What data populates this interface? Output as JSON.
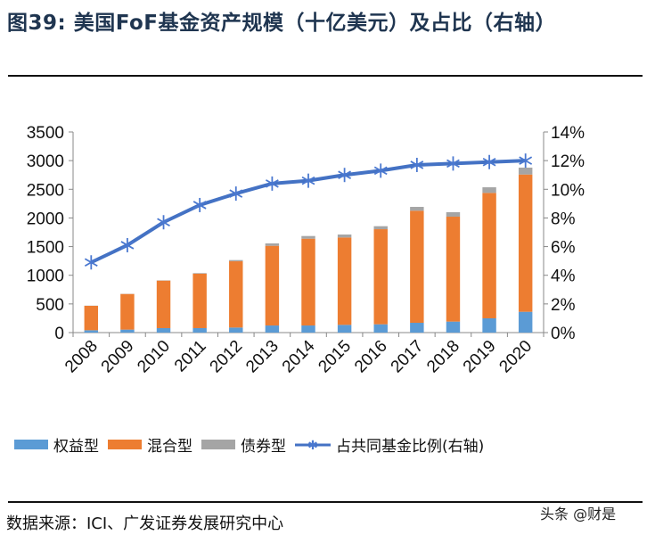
{
  "title": "图39:  美国FoF基金资产规模（十亿美元）及占比（右轴）",
  "source": "数据来源：ICI、广发证券发展研究中心",
  "watermark": "头条 @财是",
  "chart_data": {
    "type": "bar+line",
    "stacked": true,
    "title": "美国FoF基金资产规模（十亿美元）及占比（右轴）",
    "categories": [
      "2008",
      "2009",
      "2010",
      "2011",
      "2012",
      "2013",
      "2014",
      "2015",
      "2016",
      "2017",
      "2018",
      "2019",
      "2020"
    ],
    "series": [
      {
        "name": "权益型",
        "type": "bar",
        "axis": "left",
        "color": "#5b9bd5",
        "values": [
          41,
          52,
          78,
          78,
          88,
          124,
          124,
          135,
          145,
          171,
          192,
          249,
          363
        ]
      },
      {
        "name": "混合型",
        "type": "bar",
        "axis": "left",
        "color": "#ed7d31",
        "values": [
          426,
          622,
          829,
          949,
          1156,
          1390,
          1514,
          1524,
          1659,
          1955,
          1830,
          2188,
          2395
        ]
      },
      {
        "name": "债券型",
        "type": "bar",
        "axis": "left",
        "color": "#a5a5a5",
        "values": [
          3,
          3,
          5,
          10,
          21,
          42,
          47,
          52,
          52,
          67,
          78,
          98,
          120
        ]
      },
      {
        "name": "占共同基金比例(右轴)",
        "type": "line",
        "axis": "right",
        "color": "#4472c4",
        "marker": "asterisk",
        "values": [
          4.9,
          6.1,
          7.7,
          8.9,
          9.7,
          10.4,
          10.6,
          11.0,
          11.3,
          11.7,
          11.8,
          11.9,
          12.0
        ]
      }
    ],
    "y_left": {
      "range": [
        0,
        3500
      ],
      "ticks": [
        "0",
        "500",
        "1000",
        "1500",
        "2000",
        "2500",
        "3000",
        "3500"
      ]
    },
    "y_right": {
      "range": [
        0,
        14
      ],
      "unit": "%",
      "ticks": [
        "0%",
        "2%",
        "4%",
        "6%",
        "8%",
        "10%",
        "12%",
        "14%"
      ]
    },
    "grid": false,
    "legend_placement": "bottom"
  }
}
